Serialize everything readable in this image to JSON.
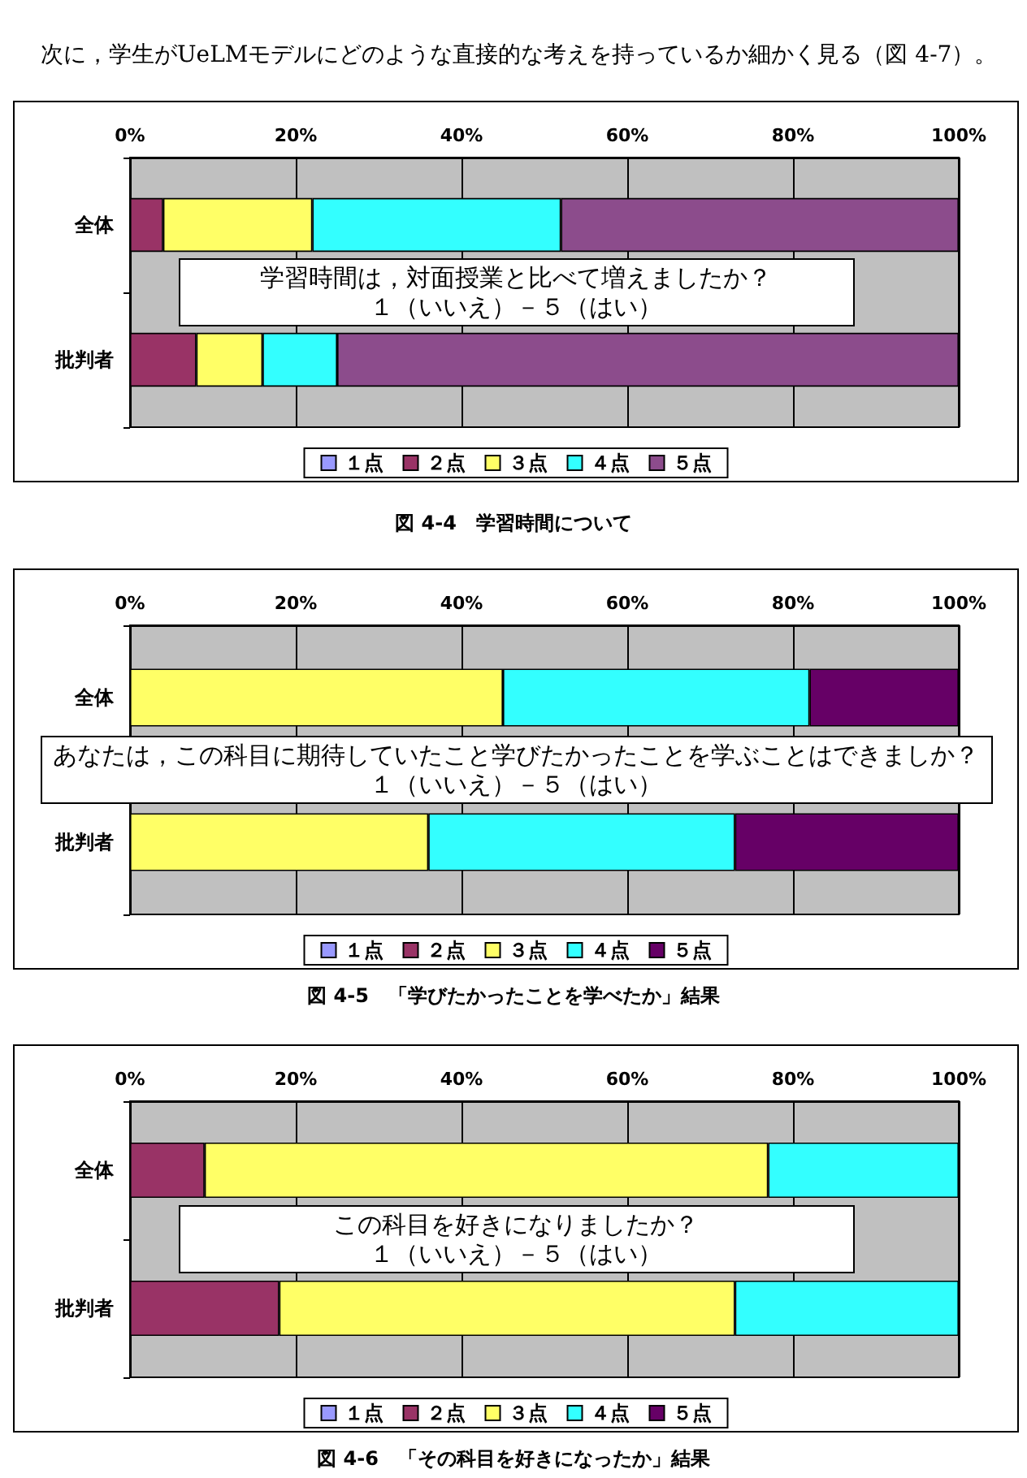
{
  "chart_data": [
    {
      "type": "bar",
      "orientation": "horizontal",
      "stacked": true,
      "title": "図 4-4　学習時間について",
      "annotations": [
        "次に，学生がUeLMモデルにどのような直接的な考えを持っているか細かく見る（図 4-7）。",
        "学習時間は，対面授業と比べて増えましたか？",
        "１（いいえ）－５（はい）"
      ],
      "categories": [
        "全体",
        "批判者"
      ],
      "series": [
        {
          "name": "１点",
          "color": "#9999ff",
          "values": [
            0,
            0
          ]
        },
        {
          "name": "２点",
          "color": "#993366",
          "values": [
            4,
            8
          ]
        },
        {
          "name": "３点",
          "color": "#ffff66",
          "values": [
            18,
            8
          ]
        },
        {
          "name": "４点",
          "color": "#33ffff",
          "values": [
            30,
            9
          ]
        },
        {
          "name": "５点",
          "color": "#8c4c8c",
          "values": [
            48,
            75
          ]
        }
      ],
      "xlim": [
        0,
        100
      ],
      "xticks": [
        {
          "value": 0,
          "label": "0%"
        },
        {
          "value": 20,
          "label": "20%"
        },
        {
          "value": 40,
          "label": "40%"
        },
        {
          "value": 60,
          "label": "60%"
        },
        {
          "value": 80,
          "label": "80%"
        },
        {
          "value": 100,
          "label": "100%"
        }
      ],
      "grid": "x",
      "legend": "bottom"
    },
    {
      "type": "bar",
      "orientation": "horizontal",
      "stacked": true,
      "title": "図 4-5　「学びたかったことを学べたか」結果",
      "annotations": [
        "あなたは，この科目に期待していたこと学びたかったことを学ぶことはできましか？",
        "１（いいえ）－５（はい）"
      ],
      "categories": [
        "全体",
        "批判者"
      ],
      "series": [
        {
          "name": "１点",
          "color": "#9999ff",
          "values": [
            0,
            0
          ]
        },
        {
          "name": "２点",
          "color": "#993366",
          "values": [
            0,
            0
          ]
        },
        {
          "name": "３点",
          "color": "#ffff66",
          "values": [
            45,
            36
          ]
        },
        {
          "name": "４点",
          "color": "#33ffff",
          "values": [
            37,
            37
          ]
        },
        {
          "name": "５点",
          "color": "#660066",
          "values": [
            18,
            27
          ]
        }
      ],
      "xlim": [
        0,
        100
      ],
      "xticks": [
        {
          "value": 0,
          "label": "0%"
        },
        {
          "value": 20,
          "label": "20%"
        },
        {
          "value": 40,
          "label": "40%"
        },
        {
          "value": 60,
          "label": "60%"
        },
        {
          "value": 80,
          "label": "80%"
        },
        {
          "value": 100,
          "label": "100%"
        }
      ],
      "grid": "x",
      "legend": "bottom"
    },
    {
      "type": "bar",
      "orientation": "horizontal",
      "stacked": true,
      "title": "図 4-6　「その科目を好きになったか」結果",
      "annotations": [
        "この科目を好きになりましたか？",
        "１（いいえ）－５（はい）"
      ],
      "categories": [
        "全体",
        "批判者"
      ],
      "series": [
        {
          "name": "１点",
          "color": "#9999ff",
          "values": [
            0,
            0
          ]
        },
        {
          "name": "２点",
          "color": "#993366",
          "values": [
            9,
            18
          ]
        },
        {
          "name": "３点",
          "color": "#ffff66",
          "values": [
            68,
            55
          ]
        },
        {
          "name": "４点",
          "color": "#33ffff",
          "values": [
            23,
            27
          ]
        },
        {
          "name": "５点",
          "color": "#660066",
          "values": [
            0,
            0
          ]
        }
      ],
      "xlim": [
        0,
        100
      ],
      "xticks": [
        {
          "value": 0,
          "label": "0%"
        },
        {
          "value": 20,
          "label": "20%"
        },
        {
          "value": 40,
          "label": "40%"
        },
        {
          "value": 60,
          "label": "60%"
        },
        {
          "value": 80,
          "label": "80%"
        },
        {
          "value": 100,
          "label": "100%"
        }
      ],
      "grid": "x",
      "legend": "bottom"
    }
  ]
}
